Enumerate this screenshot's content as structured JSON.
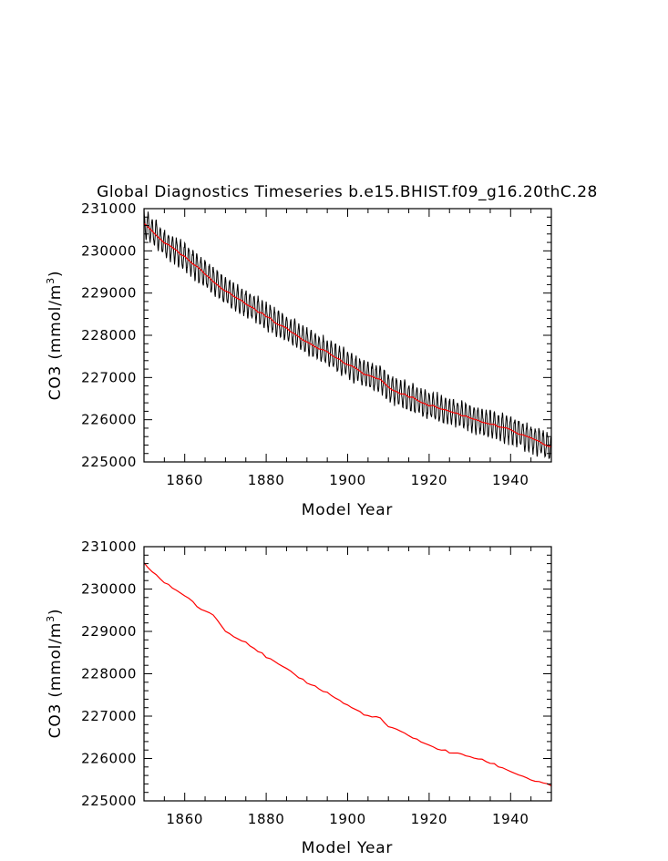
{
  "chart_data": [
    {
      "type": "line",
      "title": "Global Diagnostics Timeseries b.e15.BHIST.f09_g16.20thC.28",
      "xlabel": "Model Year",
      "ylabel_prefix": "CO3 (mmol/m",
      "ylabel_sup": "3",
      "ylabel_suffix": ")",
      "xlim": [
        1850,
        1950
      ],
      "ylim": [
        225000,
        231000
      ],
      "x_ticks": [
        1860,
        1880,
        1900,
        1920,
        1940
      ],
      "y_ticks": [
        225000,
        226000,
        227000,
        228000,
        229000,
        230000,
        231000
      ],
      "grid": false,
      "series": [
        {
          "kind": "monthly",
          "color": "#000000",
          "anchors": [
            [
              1850,
              230650
            ],
            [
              1855,
              230200
            ],
            [
              1860,
              229850
            ],
            [
              1865,
              229450
            ],
            [
              1870,
              229050
            ],
            [
              1875,
              228750
            ],
            [
              1880,
              228450
            ],
            [
              1885,
              228150
            ],
            [
              1890,
              227850
            ],
            [
              1895,
              227600
            ],
            [
              1900,
              227300
            ],
            [
              1905,
              227050
            ],
            [
              1908,
              226950
            ],
            [
              1910,
              226750
            ],
            [
              1915,
              226550
            ],
            [
              1920,
              226350
            ],
            [
              1925,
              226200
            ],
            [
              1930,
              226050
            ],
            [
              1935,
              225900
            ],
            [
              1940,
              225750
            ],
            [
              1945,
              225550
            ],
            [
              1950,
              225350
            ]
          ],
          "seasonal_amplitude": 300
        },
        {
          "kind": "annual",
          "color": "#ff0000",
          "anchors": [
            [
              1850,
              230650
            ],
            [
              1855,
              230200
            ],
            [
              1860,
              229850
            ],
            [
              1865,
              229450
            ],
            [
              1870,
              229050
            ],
            [
              1875,
              228750
            ],
            [
              1880,
              228450
            ],
            [
              1885,
              228150
            ],
            [
              1890,
              227850
            ],
            [
              1895,
              227600
            ],
            [
              1900,
              227300
            ],
            [
              1905,
              227050
            ],
            [
              1908,
              226950
            ],
            [
              1910,
              226750
            ],
            [
              1915,
              226550
            ],
            [
              1920,
              226350
            ],
            [
              1925,
              226200
            ],
            [
              1930,
              226050
            ],
            [
              1935,
              225900
            ],
            [
              1940,
              225750
            ],
            [
              1945,
              225550
            ],
            [
              1950,
              225350
            ]
          ]
        }
      ]
    },
    {
      "type": "line",
      "title": "",
      "xlabel": "Model Year",
      "ylabel_prefix": "CO3 (mmol/m",
      "ylabel_sup": "3",
      "ylabel_suffix": ")",
      "xlim": [
        1850,
        1950
      ],
      "ylim": [
        225000,
        231000
      ],
      "x_ticks": [
        1860,
        1880,
        1900,
        1920,
        1940
      ],
      "y_ticks": [
        225000,
        226000,
        227000,
        228000,
        229000,
        230000,
        231000
      ],
      "grid": false,
      "series": [
        {
          "kind": "annual",
          "color": "#ff0000",
          "anchors": [
            [
              1850,
              230600
            ],
            [
              1855,
              230150
            ],
            [
              1860,
              229850
            ],
            [
              1862,
              229700
            ],
            [
              1864,
              229500
            ],
            [
              1867,
              229400
            ],
            [
              1870,
              229000
            ],
            [
              1875,
              228750
            ],
            [
              1880,
              228400
            ],
            [
              1885,
              228100
            ],
            [
              1890,
              227800
            ],
            [
              1895,
              227550
            ],
            [
              1900,
              227250
            ],
            [
              1905,
              227000
            ],
            [
              1908,
              226950
            ],
            [
              1910,
              226750
            ],
            [
              1915,
              226550
            ],
            [
              1920,
              226300
            ],
            [
              1925,
              226150
            ],
            [
              1930,
              226050
            ],
            [
              1935,
              225900
            ],
            [
              1940,
              225700
            ],
            [
              1945,
              225500
            ],
            [
              1950,
              225350
            ]
          ]
        }
      ]
    }
  ]
}
